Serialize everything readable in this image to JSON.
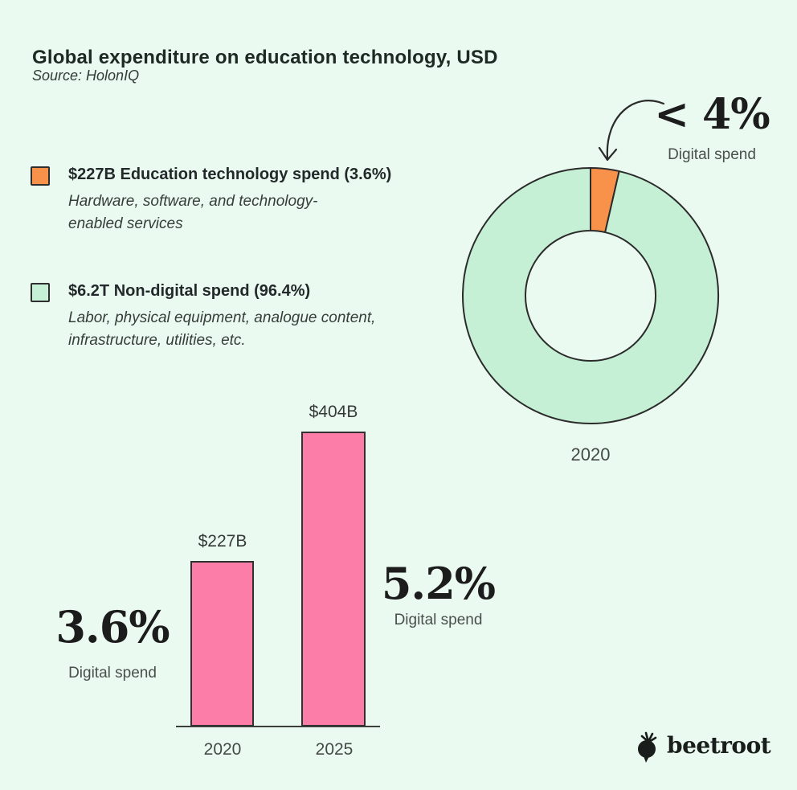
{
  "header": {
    "title": "Global expenditure on education technology, USD",
    "source": "Source: HolonIQ"
  },
  "legend": {
    "items": [
      {
        "label": "$227B Education technology spend (3.6%)",
        "desc_line1": "Hardware, software, and technology-",
        "desc_line2": "enabled services",
        "color": "#f8924a"
      },
      {
        "label": "$6.2T Non-digital spend (96.4%)",
        "desc_line1": "Labor, physical equipment, analogue content,",
        "desc_line2": "infrastructure, utilities, etc.",
        "color": "#c5f0d5"
      }
    ]
  },
  "donut_section": {
    "callout_value": "< 4%",
    "callout_label": "Digital spend",
    "year_label": "2020"
  },
  "bar_section": {
    "bars": [
      {
        "value_label": "$227B",
        "year": "2020",
        "pct": "3.6%",
        "pct_caption": "Digital spend"
      },
      {
        "value_label": "$404B",
        "year": "2025",
        "pct": "5.2%",
        "pct_caption": "Digital spend"
      }
    ]
  },
  "footer": {
    "brand": "beetroot"
  },
  "colors": {
    "background": "#eafaf0",
    "orange": "#f8924a",
    "mint": "#c5f0d5",
    "pink": "#fb7da8",
    "outline": "#2b2b2b"
  },
  "chart_data": [
    {
      "type": "pie",
      "donut": true,
      "categories": [
        "Education technology spend",
        "Non-digital spend"
      ],
      "values": [
        3.6,
        96.4
      ],
      "value_labels": [
        "$227B",
        "$6.2T"
      ],
      "colors": [
        "#f8924a",
        "#c5f0d5"
      ],
      "annotation": "< 4% Digital spend",
      "axis_label": "2020",
      "legend_position": "left"
    },
    {
      "type": "bar",
      "categories": [
        "2020",
        "2025"
      ],
      "values": [
        227,
        404
      ],
      "value_labels": [
        "$227B",
        "$404B"
      ],
      "annotations": [
        "3.6% Digital spend",
        "5.2% Digital spend"
      ],
      "bar_color": "#fb7da8",
      "ylim": [
        0,
        450
      ],
      "grid": false
    }
  ]
}
